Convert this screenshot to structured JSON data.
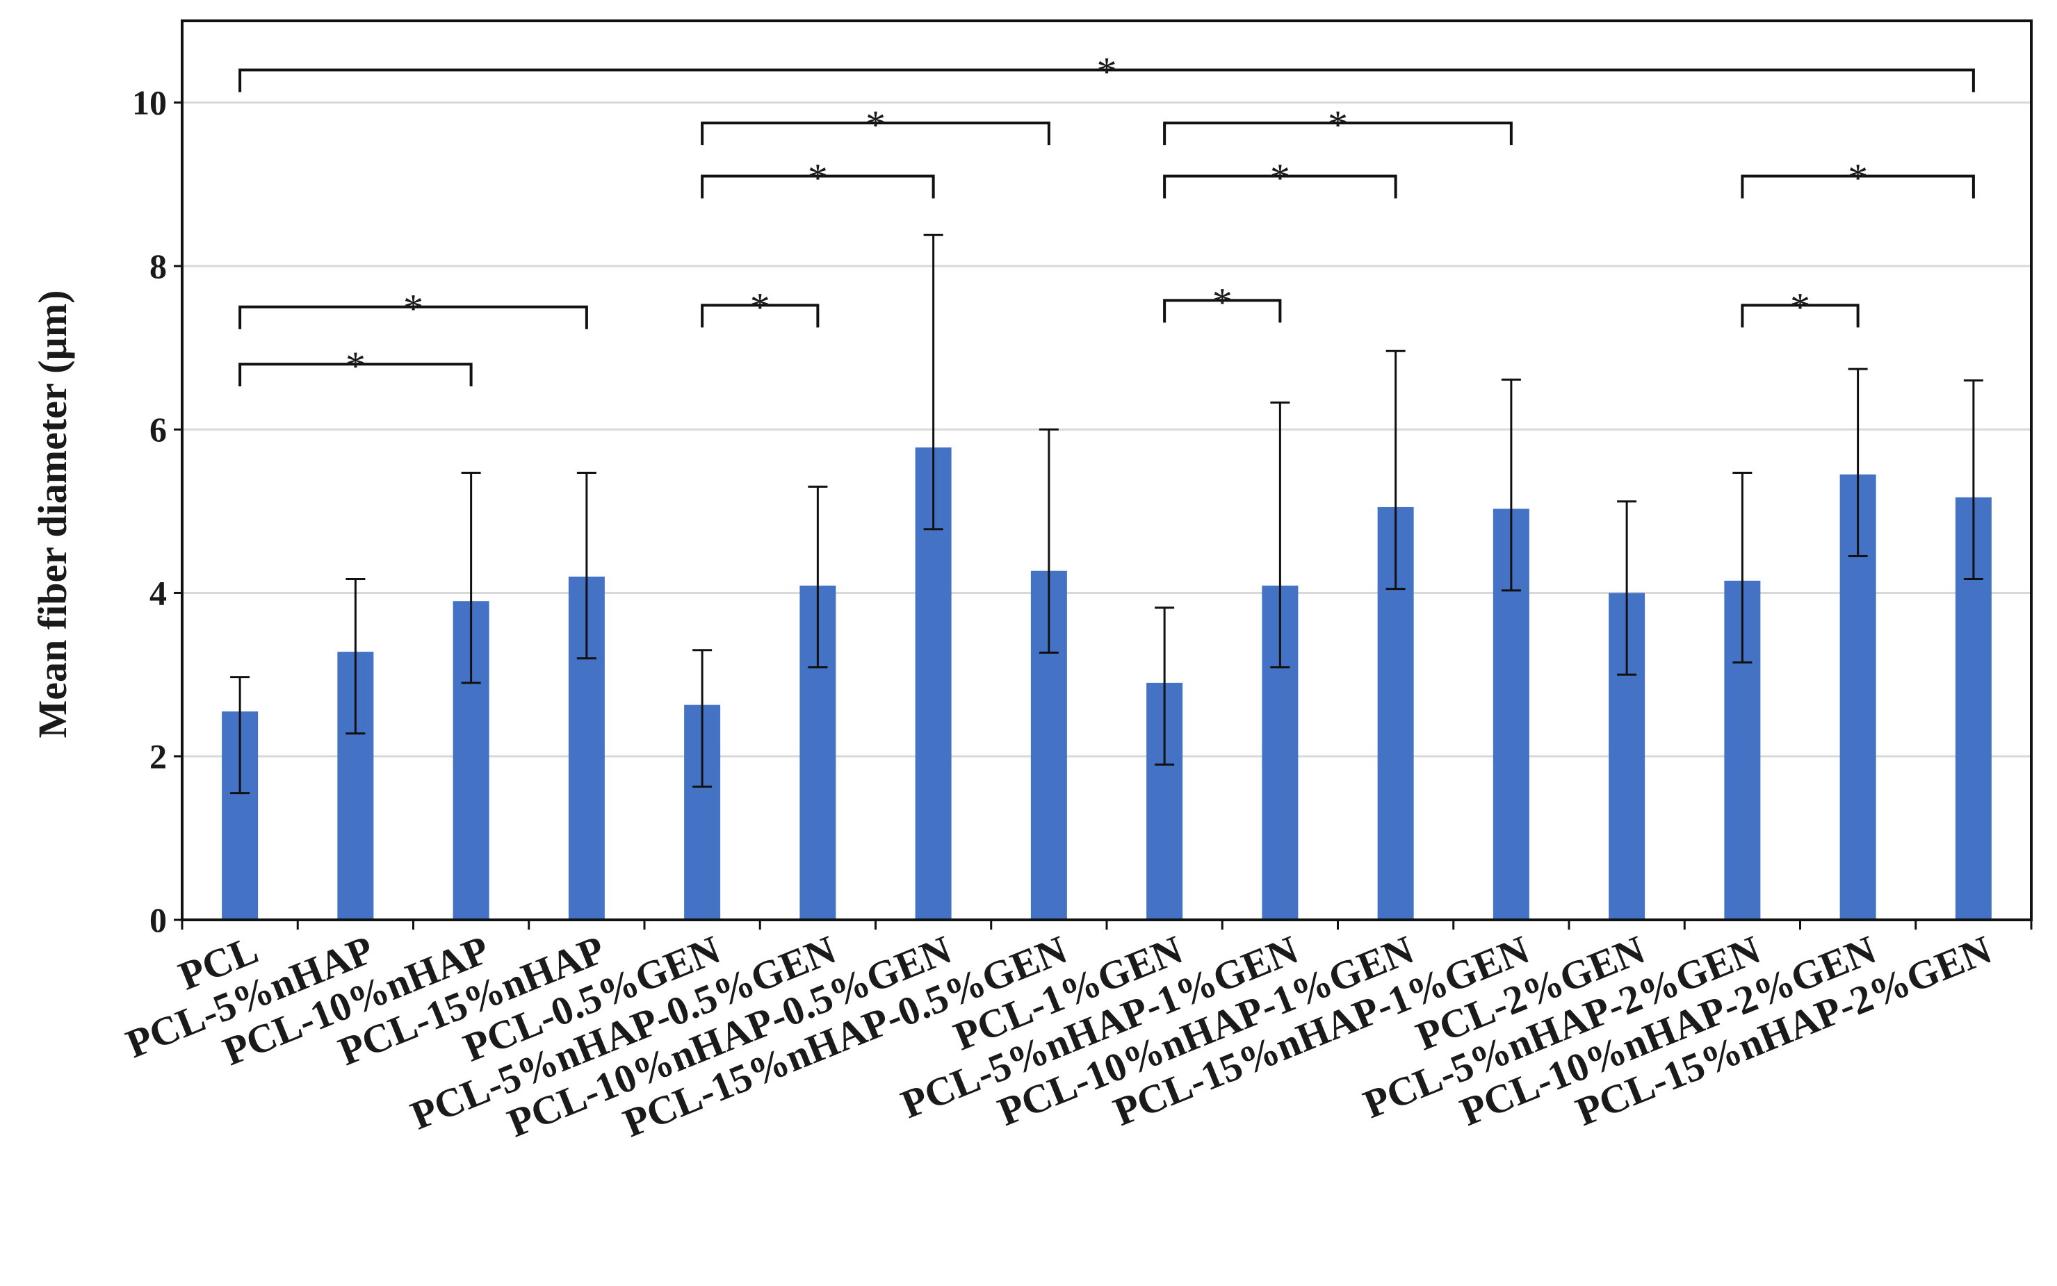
{
  "chart_data": {
    "type": "bar",
    "title": "",
    "xlabel": "",
    "ylabel": "Mean fiber diameter (µm)",
    "ylim": [
      0,
      11
    ],
    "yticks": [
      0,
      2,
      4,
      6,
      8,
      10
    ],
    "grid": true,
    "bar_color": "#4472C4",
    "grid_color": "#d9d9d9",
    "categories": [
      "PCL",
      "PCL-5%nHAP",
      "PCL-10%nHAP",
      "PCL-15%nHAP",
      "PCL-0.5%GEN",
      "PCL-5%nHAP-0.5%GEN",
      "PCL-10%nHAP-0.5%GEN",
      "PCL-15%nHAP-0.5%GEN",
      "PCL-1%GEN",
      "PCL-5%nHAP-1%GEN",
      "PCL-10%nHAP-1%GEN",
      "PCL-15%nHAP-1%GEN",
      "PCL-2%GEN",
      "PCL-5%nHAP-2%GEN",
      "PCL-10%nHAP-2%GEN",
      "PCL-15%nHAP-2%GEN"
    ],
    "values": [
      2.55,
      3.28,
      3.9,
      4.2,
      2.63,
      4.09,
      5.78,
      4.27,
      2.9,
      4.09,
      5.05,
      5.03,
      4.0,
      4.15,
      5.45,
      5.17
    ],
    "error_upper": [
      0.42,
      0.89,
      1.57,
      1.27,
      0.67,
      1.21,
      2.6,
      1.73,
      0.92,
      2.24,
      1.91,
      1.58,
      1.12,
      1.32,
      1.29,
      1.43
    ],
    "error_lower": [
      1.0,
      1.0,
      1.0,
      1.0,
      1.0,
      1.0,
      1.0,
      1.0,
      1.0,
      1.0,
      1.0,
      1.0,
      1.0,
      1.0,
      1.0,
      1.0
    ],
    "significance": [
      {
        "from": 0,
        "to": 15,
        "y": 10.4,
        "label": "*"
      },
      {
        "from": 4,
        "to": 7,
        "y": 9.75,
        "label": "*"
      },
      {
        "from": 4,
        "to": 6,
        "y": 9.1,
        "label": "*"
      },
      {
        "from": 4,
        "to": 5,
        "y": 7.52,
        "label": "*"
      },
      {
        "from": 8,
        "to": 11,
        "y": 9.75,
        "label": "*"
      },
      {
        "from": 8,
        "to": 10,
        "y": 9.1,
        "label": "*"
      },
      {
        "from": 8,
        "to": 9,
        "y": 7.58,
        "label": "*"
      },
      {
        "from": 13,
        "to": 15,
        "y": 9.1,
        "label": "*"
      },
      {
        "from": 13,
        "to": 14,
        "y": 7.52,
        "label": "*"
      },
      {
        "from": 0,
        "to": 3,
        "y": 7.5,
        "label": "*"
      },
      {
        "from": 0,
        "to": 2,
        "y": 6.8,
        "label": "*"
      }
    ]
  }
}
